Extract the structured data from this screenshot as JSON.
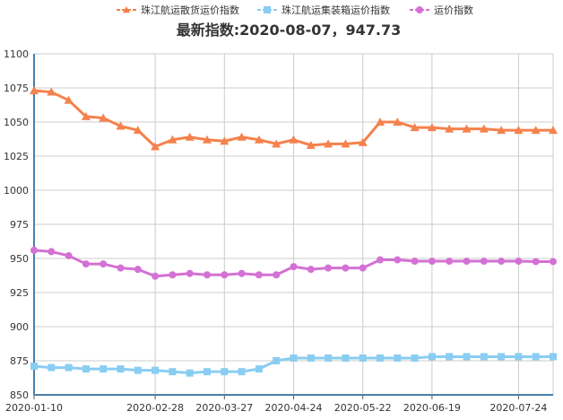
{
  "chart_data": {
    "type": "line",
    "title": "最新指数:2020-08-07，947.73",
    "legend_position": "top-center",
    "grid": true,
    "ylim": [
      850,
      1100
    ],
    "y_ticks": [
      "850",
      "875",
      "900",
      "925",
      "950",
      "975",
      "1000",
      "1025",
      "1050",
      "1075",
      "1100"
    ],
    "x_tick_labels": [
      "2020-01-10",
      "2020-02-28",
      "2020-03-27",
      "2020-04-24",
      "2020-05-22",
      "2020-06-19",
      "2020-07-24"
    ],
    "x": [
      "2020-01-10",
      "2020-01-17",
      "2020-01-24",
      "2020-01-31",
      "2020-02-07",
      "2020-02-14",
      "2020-02-21",
      "2020-02-28",
      "2020-03-06",
      "2020-03-13",
      "2020-03-20",
      "2020-03-27",
      "2020-04-03",
      "2020-04-10",
      "2020-04-17",
      "2020-04-24",
      "2020-05-01",
      "2020-05-08",
      "2020-05-15",
      "2020-05-22",
      "2020-05-29",
      "2020-06-05",
      "2020-06-12",
      "2020-06-19",
      "2020-06-26",
      "2020-07-03",
      "2020-07-10",
      "2020-07-17",
      "2020-07-24",
      "2020-07-31",
      "2020-08-07"
    ],
    "series": [
      {
        "name": "珠江航运散货运价指数",
        "color": "#f5814c",
        "marker": "triangle",
        "values": [
          1073,
          1072,
          1066,
          1054,
          1053,
          1047,
          1044,
          1032,
          1037,
          1039,
          1037,
          1036,
          1039,
          1037,
          1034,
          1037,
          1033,
          1034,
          1034,
          1035,
          1050,
          1050,
          1046,
          1046,
          1045,
          1045,
          1045,
          1044,
          1044,
          1044,
          1044
        ]
      },
      {
        "name": "珠江航运集装箱运价指数",
        "color": "#8acdf2",
        "marker": "square",
        "values": [
          871,
          870,
          870,
          869,
          869,
          869,
          868,
          868,
          867,
          866,
          867,
          867,
          867,
          869,
          875,
          877,
          877,
          877,
          877,
          877,
          877,
          877,
          877,
          878,
          878,
          878,
          878,
          878,
          878,
          878,
          878
        ]
      },
      {
        "name": "运价指数",
        "color": "#d471d4",
        "marker": "circle",
        "values": [
          956,
          955,
          952,
          946,
          946,
          943,
          942,
          937,
          938,
          939,
          938,
          938,
          939,
          938,
          938,
          944,
          942,
          943,
          943,
          943,
          949,
          949,
          948,
          948,
          948,
          948,
          948,
          948,
          948,
          947.73,
          947.73
        ]
      }
    ]
  }
}
